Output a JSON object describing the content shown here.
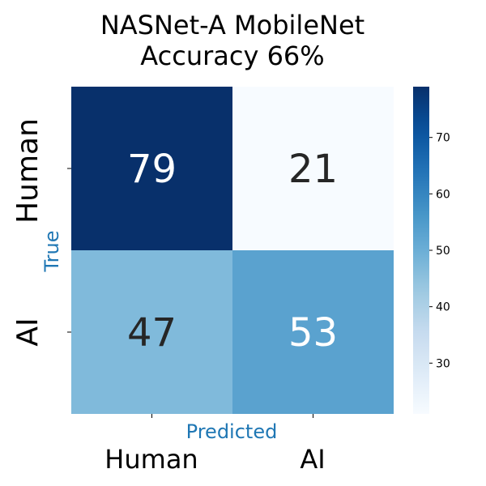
{
  "chart_data": {
    "type": "heatmap",
    "title_lines": [
      "NASNet-A MobileNet",
      "Accuracy 66%"
    ],
    "xlabel": "Predicted",
    "ylabel": "True",
    "x_categories": [
      "Human",
      "AI"
    ],
    "y_categories": [
      "Human",
      "AI"
    ],
    "values": [
      [
        79,
        21
      ],
      [
        47,
        53
      ]
    ],
    "colormap": "Blues",
    "colorbar": {
      "min": 21,
      "max": 79,
      "ticks": [
        30,
        40,
        50,
        60,
        70
      ],
      "tick_labels": [
        "30",
        "40",
        "50",
        "60",
        "70"
      ]
    },
    "colors": {
      "axis_label": "#1f77b4",
      "dark_text": "#262626",
      "light_text": "#ffffff"
    }
  }
}
